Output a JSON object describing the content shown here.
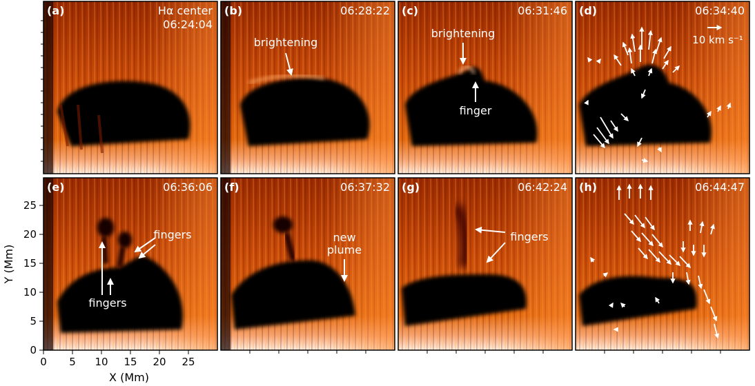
{
  "figure": {
    "panels": [
      {
        "label": "(a)",
        "time": "06:24:04",
        "subtitle": "Hα center",
        "annotations": []
      },
      {
        "label": "(b)",
        "time": "06:28:22",
        "annotations": [
          "brightening"
        ]
      },
      {
        "label": "(c)",
        "time": "06:31:46",
        "annotations": [
          "brightening",
          "finger"
        ]
      },
      {
        "label": "(d)",
        "time": "06:34:40",
        "annotations": [],
        "vector_scale_label": "10 km s⁻¹"
      },
      {
        "label": "(e)",
        "time": "06:36:06",
        "annotations": [
          "fingers",
          "fingers"
        ]
      },
      {
        "label": "(f)",
        "time": "06:37:32",
        "annotations": [
          "new",
          "plume"
        ]
      },
      {
        "label": "(g)",
        "time": "06:42:24",
        "annotations": [
          "fingers"
        ]
      },
      {
        "label": "(h)",
        "time": "06:44:47",
        "annotations": []
      }
    ],
    "axes": {
      "x_label": "X (Mm)",
      "y_label": "Y (Mm)",
      "x_ticks": [
        "0",
        "5",
        "10",
        "15",
        "20",
        "25"
      ],
      "y_ticks": [
        "0",
        "5",
        "10",
        "15",
        "20",
        "25"
      ]
    },
    "colors": {
      "colormap": [
        "#000000",
        "#3a0500",
        "#7a1a00",
        "#c23a00",
        "#ec6d10",
        "#fbb27a",
        "#fff3e8"
      ],
      "frame": "#000000",
      "text": "#ffffff"
    }
  }
}
